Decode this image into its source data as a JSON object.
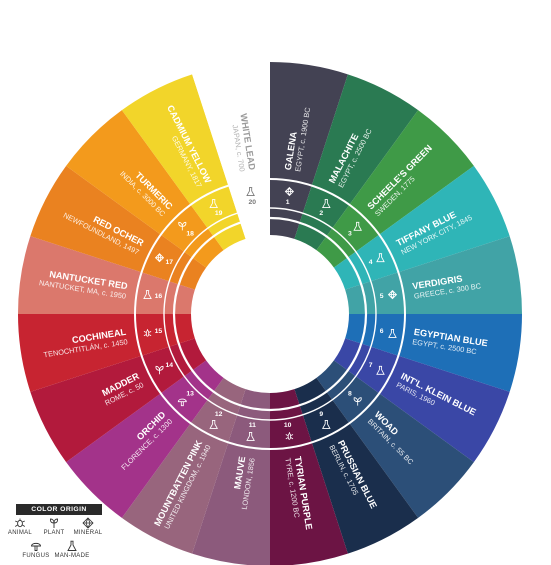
{
  "colors": [
    {
      "num": "1",
      "name": "GALENA",
      "origin": "EGYPT, c. 1900 BC",
      "color": "#434253",
      "icon": "mineral-icon"
    },
    {
      "num": "2",
      "name": "MALACHITE",
      "origin": "EGYPT, c. 2500 BC",
      "color": "#2a7a52",
      "icon": "man-made-icon"
    },
    {
      "num": "3",
      "name": "SCHEELE'S GREEN",
      "origin": "SWEDEN, 1775",
      "color": "#3f9a47",
      "icon": "man-made-icon"
    },
    {
      "num": "4",
      "name": "TIFFANY BLUE",
      "origin": "NEW YORK CITY, 1845",
      "color": "#2fb5b7",
      "icon": "man-made-icon"
    },
    {
      "num": "5",
      "name": "VERDIGRIS",
      "origin": "GREECE, c. 300 BC",
      "color": "#41a3a6",
      "icon": "mineral-icon"
    },
    {
      "num": "6",
      "name": "EGYPTIAN BLUE",
      "origin": "EGYPT, c. 2500 BC",
      "color": "#1e6fb7",
      "icon": "man-made-icon"
    },
    {
      "num": "7",
      "name": "INT'L. KLEIN BLUE",
      "origin": "PARIS, 1960",
      "color": "#3a47a6",
      "icon": "man-made-icon"
    },
    {
      "num": "8",
      "name": "WOAD",
      "origin": "BRITAIN, c. 55 BC",
      "color": "#2c4f78",
      "icon": "plant-icon"
    },
    {
      "num": "9",
      "name": "PRUSSIAN BLUE",
      "origin": "BERLIN, c. 1705",
      "color": "#1a2e4c",
      "icon": "man-made-icon"
    },
    {
      "num": "10",
      "name": "TYRIAN PURPLE",
      "origin": "TYRE, c. 1200 BC",
      "color": "#6c1444",
      "icon": "animal-icon"
    },
    {
      "num": "11",
      "name": "MAUVE",
      "origin": "LONDON, 1856",
      "color": "#8c5a7c",
      "icon": "man-made-icon"
    },
    {
      "num": "12",
      "name": "MOUNTBATTEN PINK",
      "origin": "UNITED KINGDOM, c. 1940",
      "color": "#98657d",
      "icon": "man-made-icon"
    },
    {
      "num": "13",
      "name": "ORCHID",
      "origin": "FLORENCE, c. 1300",
      "color": "#a3338a",
      "icon": "fungus-icon"
    },
    {
      "num": "14",
      "name": "MADDER",
      "origin": "ROME, c. 50",
      "color": "#b21a3c",
      "icon": "plant-icon"
    },
    {
      "num": "15",
      "name": "COCHINEAL",
      "origin": "TENOCHTITLÁN, c. 1450",
      "color": "#c72431",
      "icon": "animal-icon"
    },
    {
      "num": "16",
      "name": "NANTUCKET RED",
      "origin": "NANTUCKET, MA, c. 1950",
      "color": "#db786c",
      "icon": "man-made-icon"
    },
    {
      "num": "17",
      "name": "RED OCHER",
      "origin": "NEWFOUNDLAND, 1497",
      "color": "#ea8220",
      "icon": "mineral-icon"
    },
    {
      "num": "18",
      "name": "TURMERIC",
      "origin": "INDIA, c. 3000 BC",
      "color": "#f39a1c",
      "icon": "plant-icon"
    },
    {
      "num": "19",
      "name": "CADMIUM YELLOW",
      "origin": "GERMANY, 1817",
      "color": "#f2d52a",
      "icon": "man-made-icon"
    },
    {
      "num": "20",
      "name": "WHITE LEAD",
      "origin": "JAPAN, c. 700",
      "color": "#ffffff",
      "icon": "man-made-icon"
    }
  ],
  "legend": {
    "title": "COLOR ORIGIN",
    "items": [
      {
        "label": "ANIMAL",
        "icon": "animal-icon"
      },
      {
        "label": "PLANT",
        "icon": "plant-icon"
      },
      {
        "label": "MINERAL",
        "icon": "mineral-icon"
      },
      {
        "label": "FUNGUS",
        "icon": "fungus-icon"
      },
      {
        "label": "MAN-MADE",
        "icon": "man-made-icon"
      }
    ]
  }
}
